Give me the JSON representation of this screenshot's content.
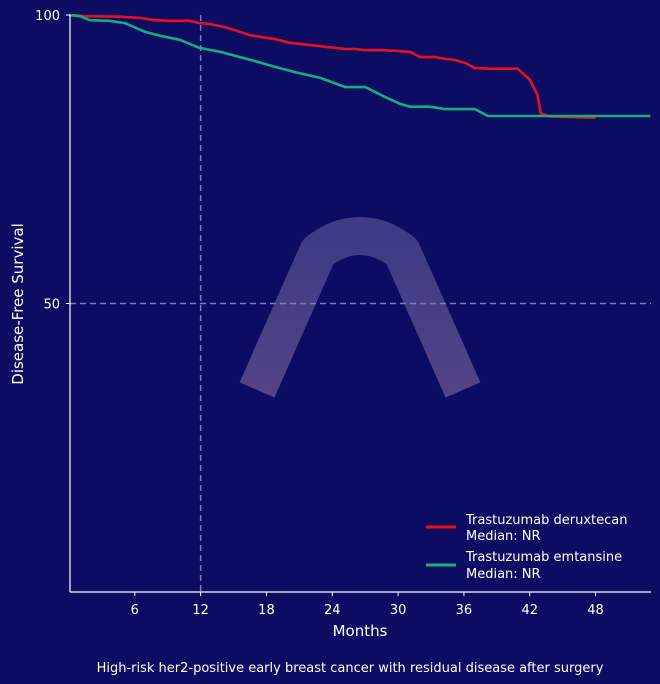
{
  "chart_data": {
    "type": "line",
    "xlabel": "Months",
    "ylabel": "Disease-Free Survival",
    "caption": "High-risk her2-positive early breast cancer with residual disease after surgery",
    "xlim": [
      0,
      53
    ],
    "ylim": [
      0,
      100
    ],
    "xticks": [
      6,
      12,
      18,
      24,
      30,
      36,
      42,
      48
    ],
    "yticks": [
      50,
      100
    ],
    "reference_lines": {
      "x": 12,
      "y": 50
    },
    "grid": false,
    "legend_position": "bottom-right",
    "series": [
      {
        "name": "Trastuzumab deruxtecan",
        "median_label": "Median: NR",
        "color": "#e8101e",
        "x": [
          0,
          1.5,
          4.7,
          6.5,
          7.8,
          9.2,
          11,
          11.9,
          12.9,
          14.2,
          15.1,
          16.5,
          18.8,
          20.1,
          22.9,
          25.2,
          26.1,
          27,
          28.8,
          29.7,
          31.1,
          32,
          33.4,
          34.3,
          35.2,
          36.1,
          37,
          38.4,
          40.9,
          42,
          42.7,
          43,
          43.8,
          48
        ],
        "y": [
          100,
          99.8,
          99.7,
          99.5,
          99.1,
          99,
          99,
          98.6,
          98.4,
          97.9,
          97.4,
          96.5,
          95.8,
          95.2,
          94.6,
          94.1,
          94.1,
          93.9,
          93.9,
          93.8,
          93.6,
          92.7,
          92.7,
          92.4,
          92.2,
          91.7,
          90.8,
          90.7,
          90.7,
          88.8,
          86.2,
          83,
          82.4,
          82.2
        ]
      },
      {
        "name": "Trastuzumab emtansine",
        "median_label": "Median: NR",
        "color": "#14b07a",
        "x": [
          0,
          1,
          1.9,
          3.7,
          5.1,
          6.9,
          8.3,
          10.1,
          11.9,
          13.8,
          15.6,
          17,
          18.8,
          20.6,
          22.9,
          25.2,
          27,
          28.8,
          30.2,
          31.1,
          32.9,
          34.3,
          37,
          38.2,
          53
        ],
        "y": [
          100,
          99.8,
          99.1,
          99,
          98.6,
          97.1,
          96.4,
          95.7,
          94.3,
          93.6,
          92.7,
          92,
          91,
          90.1,
          89.1,
          87.5,
          87.5,
          85.8,
          84.6,
          84.1,
          84.1,
          83.7,
          83.7,
          82.5,
          82.5
        ]
      }
    ]
  }
}
